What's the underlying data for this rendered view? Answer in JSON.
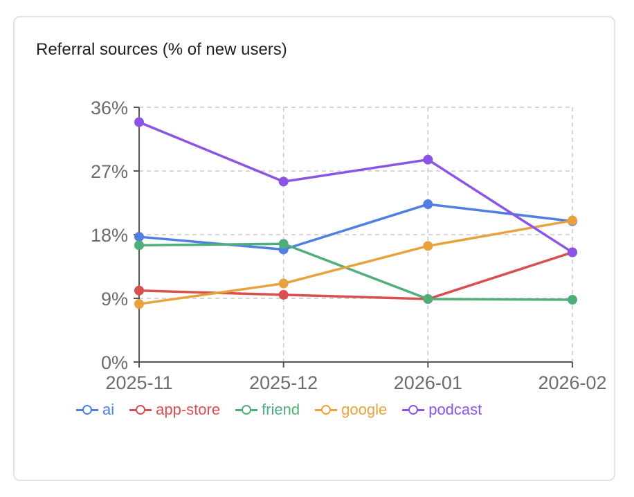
{
  "chart_data": {
    "type": "line",
    "title": "Referral sources (% of new users)",
    "xlabel": "",
    "ylabel": "",
    "categories": [
      "2025-11",
      "2025-12",
      "2026-01",
      "2026-02"
    ],
    "ylim": [
      0,
      36
    ],
    "yticks": [
      0,
      9,
      18,
      27,
      36
    ],
    "ytick_labels": [
      "0%",
      "9%",
      "18%",
      "27%",
      "36%"
    ],
    "grid": true,
    "legend_position": "bottom",
    "series": [
      {
        "name": "ai",
        "color": "#4f7fe3",
        "values": [
          17.7,
          15.9,
          22.3,
          19.9
        ]
      },
      {
        "name": "app-store",
        "color": "#d94f4f",
        "values": [
          10.1,
          9.5,
          8.9,
          15.5
        ]
      },
      {
        "name": "friend",
        "color": "#4fae7a",
        "values": [
          16.5,
          16.7,
          8.9,
          8.8
        ]
      },
      {
        "name": "google",
        "color": "#e9a23b",
        "values": [
          8.2,
          11.1,
          16.4,
          20.0
        ]
      },
      {
        "name": "podcast",
        "color": "#8a55e6",
        "values": [
          33.9,
          25.5,
          28.6,
          15.5
        ]
      }
    ]
  }
}
